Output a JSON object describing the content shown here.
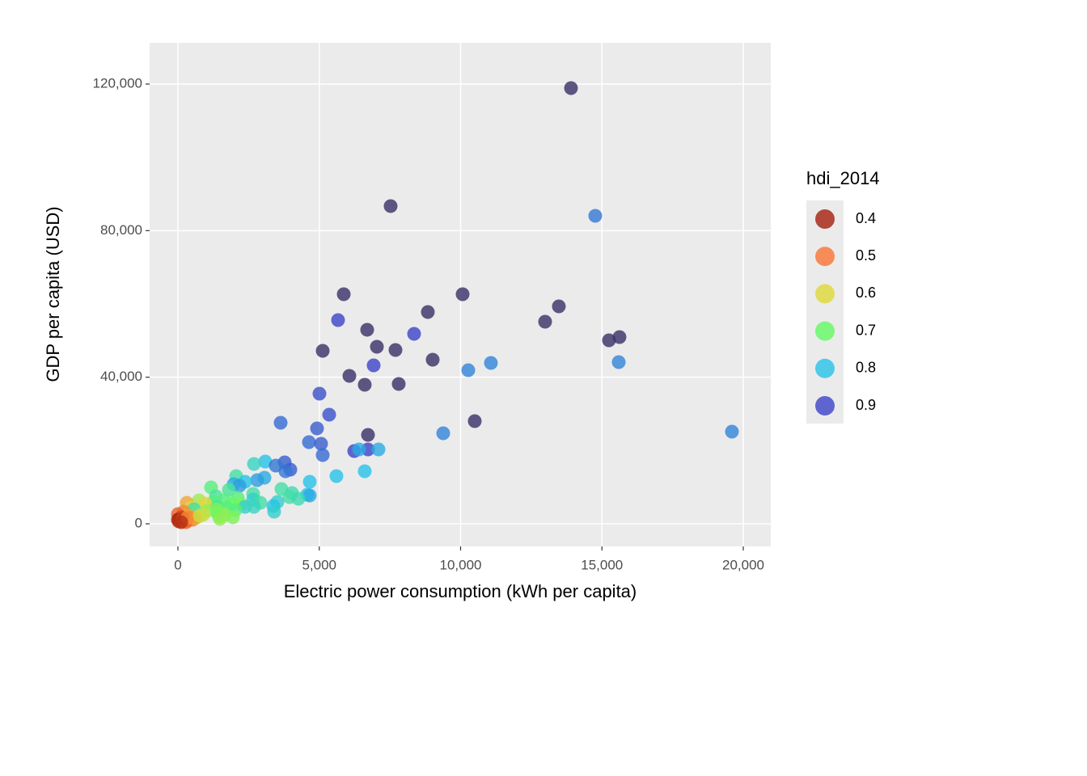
{
  "chart_data": {
    "type": "scatter",
    "x_label": "Electric power consumption (kWh per capita)",
    "y_label": "GDP per capita (USD)",
    "xlim": [
      -1001,
      20973
    ],
    "ylim": [
      -6177,
      131250
    ],
    "xticks": [
      0,
      {
        "value": 5000,
        "label": "5,000"
      },
      {
        "value": 10000,
        "label": "10,000"
      },
      {
        "value": 15000,
        "label": "15,000"
      },
      {
        "value": 20000,
        "label": "20,000"
      }
    ],
    "yticks": [
      0,
      {
        "value": 40000,
        "label": "40,000"
      },
      {
        "value": 80000,
        "label": "80,000"
      },
      {
        "value": 120000,
        "label": "120,000"
      }
    ],
    "grid": true,
    "legend_title": "hdi_2014",
    "legend_breaks": [
      0.4,
      0.5,
      0.6,
      0.7,
      0.8,
      0.9
    ],
    "legend_colors": [
      "#a51e0c",
      "#f97432",
      "#e0d83a",
      "#62fa62",
      "#27c3e8",
      "#3c44c8"
    ],
    "x": [
      13906,
      7525,
      14764,
      5866,
      10072,
      13476,
      8841,
      5665,
      12990,
      6695,
      8355,
      15622,
      15250,
      7039,
      7697,
      5122,
      9013,
      11073,
      15594,
      6924,
      10272,
      6066,
      6609,
      7811,
      5007,
      5351,
      3634,
      10501,
      4921,
      19599,
      9385,
      6724,
      4635,
      5064,
      6237,
      6724,
      7096,
      6409,
      5122,
      3090,
      2690,
      3777,
      3462,
      3977,
      3805,
      6609,
      5608,
      2060,
      3062,
      2804,
      2375,
      4664,
      1974,
      2175,
      1173,
      3662,
      1803,
      4034,
      2661,
      4578,
      4664,
      1345,
      3948,
      2117,
      4263,
      2661,
      1631,
      744,
      3519,
      1259,
      1917,
      2918,
      315,
      973,
      2232,
      3376,
      2375,
      1402,
      2690,
      1745,
      458,
      2031,
      1030,
      572,
      200,
      3405,
      1402,
      887,
      0,
      372,
      1459,
      1660,
      687,
      1946,
      114,
      57,
      0,
      172,
      315,
      515,
      29,
      286,
      458,
      601,
      172,
      343,
      1488,
      114,
      773,
      1373
    ],
    "y": [
      118900,
      86700,
      84050,
      62650,
      62650,
      59340,
      57800,
      55590,
      55150,
      52950,
      51840,
      50960,
      50080,
      48310,
      47430,
      47210,
      44780,
      43900,
      44120,
      43240,
      41910,
      40370,
      37940,
      38160,
      35520,
      29780,
      27580,
      28020,
      26030,
      25150,
      24710,
      24270,
      22280,
      21840,
      19850,
      20300,
      20300,
      20300,
      18750,
      16990,
      16320,
      16770,
      15880,
      14780,
      14340,
      14340,
      13020,
      13020,
      12570,
      11910,
      11470,
      11470,
      10810,
      10370,
      9930,
      9490,
      9270,
      8380,
      8160,
      7940,
      7720,
      7500,
      7280,
      7060,
      6840,
      6620,
      6400,
      6400,
      5960,
      5960,
      5520,
      5740,
      5740,
      5520,
      5290,
      4850,
      4630,
      4630,
      4630,
      4410,
      4410,
      3750,
      3530,
      3970,
      3310,
      3310,
      2870,
      2430,
      2650,
      2210,
      1990,
      2430,
      1770,
      1770,
      1770,
      1100,
      1100,
      880,
      880,
      1100,
      660,
      440,
      1540,
      1540,
      1540,
      1770,
      1320,
      440,
      2210,
      3970
    ],
    "hdi": [
      0.91,
      0.95,
      0.86,
      0.93,
      0.92,
      0.93,
      0.91,
      0.9,
      0.91,
      0.93,
      0.9,
      0.92,
      0.93,
      0.93,
      0.91,
      0.92,
      0.92,
      0.85,
      0.85,
      0.9,
      0.85,
      0.93,
      0.92,
      0.92,
      0.89,
      0.89,
      0.87,
      0.91,
      0.88,
      0.85,
      0.85,
      0.92,
      0.87,
      0.88,
      0.9,
      0.9,
      0.82,
      0.82,
      0.87,
      0.8,
      0.77,
      0.88,
      0.86,
      0.88,
      0.86,
      0.8,
      0.8,
      0.75,
      0.82,
      0.83,
      0.8,
      0.8,
      0.82,
      0.83,
      0.72,
      0.75,
      0.74,
      0.76,
      0.75,
      0.8,
      0.82,
      0.74,
      0.75,
      0.72,
      0.76,
      0.78,
      0.72,
      0.65,
      0.78,
      0.72,
      0.7,
      0.75,
      0.55,
      0.6,
      0.68,
      0.8,
      0.78,
      0.74,
      0.77,
      0.72,
      0.6,
      0.72,
      0.66,
      0.75,
      0.52,
      0.78,
      0.7,
      0.62,
      0.48,
      0.55,
      0.7,
      0.66,
      0.6,
      0.68,
      0.45,
      0.42,
      0.4,
      0.45,
      0.5,
      0.5,
      0.42,
      0.48,
      0.5,
      0.55,
      0.44,
      0.52,
      0.66,
      0.42,
      0.62,
      0.68
    ]
  }
}
